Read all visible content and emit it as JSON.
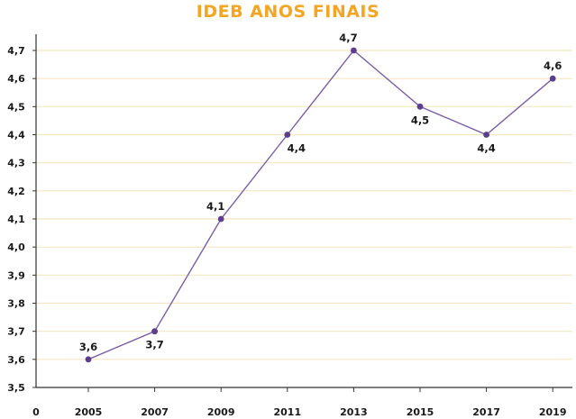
{
  "chart_data": {
    "type": "line",
    "title": "IDEB ANOS FINAIS",
    "x_origin_label": "0",
    "categories": [
      "2005",
      "2007",
      "2009",
      "2011",
      "2013",
      "2015",
      "2017",
      "2019"
    ],
    "values": [
      3.6,
      3.7,
      4.1,
      4.4,
      4.7,
      4.5,
      4.4,
      4.6
    ],
    "value_labels": [
      "3,6",
      "3,7",
      "4,1",
      "4,4",
      "4,7",
      "4,5",
      "4,4",
      "4,6"
    ],
    "y_ticks": [
      3.5,
      3.6,
      3.7,
      3.8,
      3.9,
      4.0,
      4.1,
      4.2,
      4.3,
      4.4,
      4.5,
      4.6,
      4.7
    ],
    "y_tick_labels": [
      "3,5",
      "3,6",
      "3,7",
      "3,8",
      "3,9",
      "4,0",
      "4,1",
      "4,2",
      "4,3",
      "4,4",
      "4,5",
      "4,6",
      "4,7"
    ],
    "ylim": [
      3.5,
      4.7
    ],
    "grid": true,
    "colors": {
      "title": "#F5A524",
      "line": "#7B5EA7",
      "marker": "#5B3F8C",
      "grid": "#F6E7C4",
      "axis": "#333333"
    }
  }
}
